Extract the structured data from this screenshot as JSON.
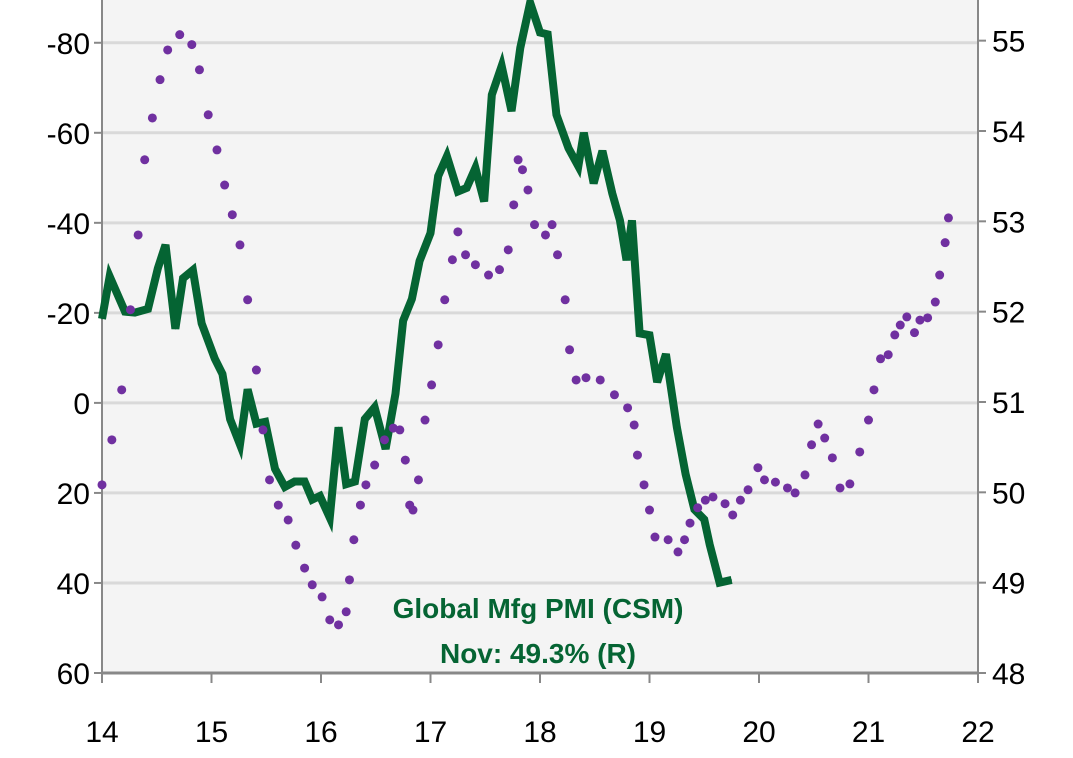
{
  "chart_data": {
    "type": "line",
    "title": "",
    "annotation": {
      "line1": "Global  Mfg PMI (CSM)",
      "line2": "Nov:  49.3% (R)"
    },
    "x_ticks": [
      "14",
      "15",
      "16",
      "17",
      "18",
      "19",
      "20",
      "21",
      "22"
    ],
    "xlim": [
      14,
      22
    ],
    "y_left": {
      "ticks": [
        "-80",
        "-60",
        "-40",
        "-20",
        "0",
        "20",
        "40",
        "60"
      ],
      "tick_values": [
        -80,
        -60,
        -40,
        -20,
        0,
        20,
        40,
        60
      ],
      "range": [
        -89.5,
        60
      ],
      "inverted": true
    },
    "y_right": {
      "ticks": [
        "55",
        "54",
        "53",
        "52",
        "51",
        "50",
        "49",
        "48"
      ],
      "tick_values": [
        55,
        54,
        53,
        52,
        51,
        50,
        49,
        48
      ],
      "range": [
        48,
        55.45
      ]
    },
    "grid": "horizontal",
    "background": "#f4f4f4",
    "gridline_color": "#d9d9d9",
    "series": [
      {
        "name": "Global  Mfg PMI (CSM)",
        "axis": "right",
        "style": "solid",
        "color": "#056433",
        "points": [
          [
            14.0,
            51.92
          ],
          [
            14.07,
            52.39
          ],
          [
            14.21,
            52.0
          ],
          [
            14.3,
            51.99
          ],
          [
            14.42,
            52.03
          ],
          [
            14.51,
            52.48
          ],
          [
            14.58,
            52.74
          ],
          [
            14.67,
            51.81
          ],
          [
            14.74,
            52.37
          ],
          [
            14.83,
            52.46
          ],
          [
            14.91,
            51.87
          ],
          [
            15.03,
            51.48
          ],
          [
            15.1,
            51.31
          ],
          [
            15.17,
            50.81
          ],
          [
            15.26,
            50.53
          ],
          [
            15.33,
            51.14
          ],
          [
            15.41,
            50.76
          ],
          [
            15.49,
            50.78
          ],
          [
            15.58,
            50.26
          ],
          [
            15.67,
            50.06
          ],
          [
            15.76,
            50.12
          ],
          [
            15.85,
            50.12
          ],
          [
            15.92,
            49.92
          ],
          [
            15.99,
            49.96
          ],
          [
            16.08,
            49.72
          ],
          [
            16.16,
            50.72
          ],
          [
            16.23,
            50.09
          ],
          [
            16.31,
            50.12
          ],
          [
            16.4,
            50.81
          ],
          [
            16.49,
            50.94
          ],
          [
            16.59,
            50.48
          ],
          [
            16.68,
            51.09
          ],
          [
            16.75,
            51.9
          ],
          [
            16.83,
            52.14
          ],
          [
            16.9,
            52.56
          ],
          [
            17.0,
            52.87
          ],
          [
            17.07,
            53.5
          ],
          [
            17.15,
            53.72
          ],
          [
            17.25,
            53.33
          ],
          [
            17.33,
            53.37
          ],
          [
            17.41,
            53.59
          ],
          [
            17.49,
            53.22
          ],
          [
            17.56,
            54.4
          ],
          [
            17.65,
            54.72
          ],
          [
            17.74,
            54.22
          ],
          [
            17.82,
            54.92
          ],
          [
            17.91,
            55.42
          ],
          [
            18.0,
            55.09
          ],
          [
            18.07,
            55.07
          ],
          [
            18.15,
            54.18
          ],
          [
            18.26,
            53.81
          ],
          [
            18.35,
            53.61
          ],
          [
            18.4,
            53.98
          ],
          [
            18.49,
            53.42
          ],
          [
            18.57,
            53.78
          ],
          [
            18.66,
            53.31
          ],
          [
            18.73,
            53.01
          ],
          [
            18.79,
            52.57
          ],
          [
            18.84,
            53.01
          ],
          [
            18.91,
            51.76
          ],
          [
            19.0,
            51.74
          ],
          [
            19.07,
            51.22
          ],
          [
            19.15,
            51.53
          ],
          [
            19.25,
            50.72
          ],
          [
            19.33,
            50.2
          ],
          [
            19.41,
            49.81
          ],
          [
            19.5,
            49.7
          ],
          [
            19.55,
            49.42
          ],
          [
            19.64,
            49.0
          ],
          [
            19.75,
            49.03
          ]
        ]
      },
      {
        "axis": "left",
        "style": "dotted",
        "color": "#7030a0",
        "points": [
          [
            14.0,
            18.2
          ],
          [
            14.09,
            8.2
          ],
          [
            14.18,
            -2.9
          ],
          [
            14.26,
            -20.7
          ],
          [
            14.33,
            -37.3
          ],
          [
            14.39,
            -54.0
          ],
          [
            14.46,
            -63.3
          ],
          [
            14.53,
            -71.8
          ],
          [
            14.6,
            -78.4
          ],
          [
            14.71,
            -81.8
          ],
          [
            14.82,
            -79.6
          ],
          [
            14.89,
            -74.0
          ],
          [
            14.97,
            -64.0
          ],
          [
            15.05,
            -56.2
          ],
          [
            15.12,
            -48.4
          ],
          [
            15.19,
            -41.8
          ],
          [
            15.26,
            -35.1
          ],
          [
            15.33,
            -22.9
          ],
          [
            15.41,
            -7.3
          ],
          [
            15.47,
            6.0
          ],
          [
            15.53,
            17.1
          ],
          [
            15.61,
            22.7
          ],
          [
            15.7,
            26.0
          ],
          [
            15.77,
            31.6
          ],
          [
            15.85,
            36.7
          ],
          [
            15.92,
            40.4
          ],
          [
            16.01,
            43.1
          ],
          [
            16.08,
            48.2
          ],
          [
            16.16,
            49.3
          ],
          [
            16.23,
            46.4
          ],
          [
            16.26,
            39.3
          ],
          [
            16.3,
            30.4
          ],
          [
            16.36,
            22.7
          ],
          [
            16.41,
            18.2
          ],
          [
            16.49,
            13.8
          ],
          [
            16.58,
            8.2
          ],
          [
            16.66,
            5.6
          ],
          [
            16.72,
            6.0
          ],
          [
            16.77,
            12.7
          ],
          [
            16.81,
            22.7
          ],
          [
            16.84,
            23.8
          ],
          [
            16.89,
            17.1
          ],
          [
            16.95,
            3.8
          ],
          [
            17.01,
            -4.0
          ],
          [
            17.07,
            -12.9
          ],
          [
            17.13,
            -22.9
          ],
          [
            17.2,
            -31.8
          ],
          [
            17.25,
            -38.0
          ],
          [
            17.32,
            -32.9
          ],
          [
            17.41,
            -30.7
          ],
          [
            17.53,
            -28.4
          ],
          [
            17.63,
            -29.6
          ],
          [
            17.71,
            -34.0
          ],
          [
            17.76,
            -44.0
          ],
          [
            17.8,
            -54.0
          ],
          [
            17.84,
            -51.8
          ],
          [
            17.89,
            -47.3
          ],
          [
            17.95,
            -39.6
          ],
          [
            18.05,
            -37.3
          ],
          [
            18.11,
            -39.6
          ],
          [
            18.16,
            -32.9
          ],
          [
            18.23,
            -22.9
          ],
          [
            18.27,
            -11.8
          ],
          [
            18.33,
            -5.1
          ],
          [
            18.42,
            -5.6
          ],
          [
            18.55,
            -5.1
          ],
          [
            18.68,
            -1.8
          ],
          [
            18.8,
            1.1
          ],
          [
            18.86,
            4.9
          ],
          [
            18.89,
            11.6
          ],
          [
            18.95,
            18.2
          ],
          [
            19.0,
            23.8
          ],
          [
            19.05,
            29.8
          ],
          [
            19.17,
            30.4
          ],
          [
            19.26,
            33.1
          ],
          [
            19.32,
            30.4
          ],
          [
            19.37,
            26.7
          ],
          [
            19.44,
            23.3
          ],
          [
            19.51,
            21.6
          ],
          [
            19.58,
            20.9
          ],
          [
            19.69,
            22.4
          ],
          [
            19.76,
            24.9
          ],
          [
            19.83,
            21.6
          ],
          [
            19.9,
            19.3
          ],
          [
            19.99,
            14.4
          ],
          [
            20.05,
            17.1
          ],
          [
            20.15,
            17.6
          ],
          [
            20.26,
            18.9
          ],
          [
            20.33,
            20.0
          ],
          [
            20.42,
            16.0
          ],
          [
            20.48,
            9.3
          ],
          [
            20.54,
            4.7
          ],
          [
            20.6,
            7.8
          ],
          [
            20.67,
            12.2
          ],
          [
            20.74,
            18.9
          ],
          [
            20.83,
            18.0
          ],
          [
            20.92,
            10.9
          ],
          [
            21.0,
            3.8
          ],
          [
            21.05,
            -2.9
          ],
          [
            21.11,
            -9.8
          ],
          [
            21.18,
            -10.7
          ],
          [
            21.24,
            -15.1
          ],
          [
            21.29,
            -17.3
          ],
          [
            21.35,
            -19.1
          ],
          [
            21.42,
            -15.6
          ],
          [
            21.47,
            -18.4
          ],
          [
            21.54,
            -18.9
          ],
          [
            21.61,
            -22.4
          ],
          [
            21.65,
            -28.4
          ],
          [
            21.7,
            -35.6
          ],
          [
            21.73,
            -41.1
          ]
        ]
      }
    ]
  }
}
